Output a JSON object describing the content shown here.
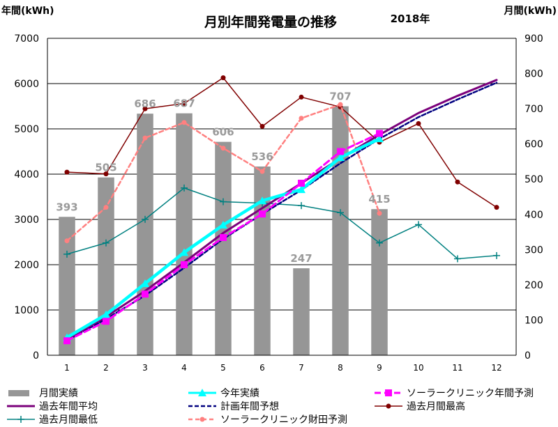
{
  "chart_data": {
    "type": "bar",
    "title": "月別年間発電量の推移",
    "subtitle": "2018年",
    "left_axis_label": "年間(kWh)",
    "right_axis_label": "月間(kWh)",
    "categories": [
      "1",
      "2",
      "3",
      "4",
      "5",
      "6",
      "7",
      "8",
      "9",
      "10",
      "11",
      "12"
    ],
    "ylim_left": [
      0,
      7000
    ],
    "yticks_left": [
      0,
      1000,
      2000,
      3000,
      4000,
      5000,
      6000,
      7000
    ],
    "ylim_right": [
      0,
      900
    ],
    "yticks_right": [
      0,
      100,
      200,
      300,
      400,
      500,
      600,
      700,
      800,
      900
    ],
    "grid": true,
    "legend_position": "bottom",
    "series": [
      {
        "name": "月間実績",
        "kind": "bar",
        "axis": "right",
        "color": "#969696",
        "values": [
          393,
          505,
          686,
          687,
          606,
          536,
          247,
          707,
          415,
          null,
          null,
          null
        ]
      },
      {
        "name": "今年実績",
        "kind": "line",
        "axis": "left",
        "color": "#00ffff",
        "marker": "triangle",
        "values": [
          393,
          898,
          1584,
          2271,
          2877,
          3413,
          3660,
          4367,
          4782,
          null,
          null,
          null
        ]
      },
      {
        "name": "ソーラークリニック年間予測",
        "kind": "line",
        "axis": "left",
        "color": "#ff00ff",
        "dash": "dash",
        "marker": "square",
        "values": [
          320,
          750,
          1350,
          2000,
          2600,
          3120,
          3800,
          4500,
          4900,
          null,
          null,
          null
        ]
      },
      {
        "name": "過去年間平均",
        "kind": "line",
        "axis": "left",
        "color": "#7b007b",
        "values": [
          350,
          850,
          1420,
          2050,
          2700,
          3250,
          3800,
          4350,
          4870,
          5350,
          5730,
          6080
        ]
      },
      {
        "name": "計画年間予想",
        "kind": "line",
        "axis": "left",
        "color": "#000080",
        "dash": "dash",
        "values": [
          330,
          800,
          1320,
          1930,
          2570,
          3120,
          3650,
          4240,
          4780,
          5260,
          5650,
          6020
        ]
      },
      {
        "name": "過去月間最高",
        "kind": "line",
        "axis": "right",
        "color": "#800000",
        "marker": "circle",
        "values": [
          520,
          515,
          700,
          715,
          788,
          650,
          733,
          705,
          605,
          658,
          492,
          420
        ]
      },
      {
        "name": "過去月間最低",
        "kind": "line",
        "axis": "right",
        "color": "#008080",
        "marker": "plus",
        "values": [
          287,
          319,
          386,
          475,
          436,
          432,
          425,
          405,
          319,
          371,
          274,
          283
        ]
      },
      {
        "name": "ソーラークリニック財田予測",
        "kind": "line",
        "axis": "right",
        "color": "#ff8080",
        "dash": "dash",
        "marker": "circle",
        "values": [
          325,
          420,
          617,
          661,
          588,
          522,
          673,
          712,
          403,
          null,
          null,
          null
        ]
      }
    ],
    "data_labels": {
      "series": "月間実績",
      "values": [
        "393",
        "505",
        "686",
        "687",
        "606",
        "536",
        "247",
        "707",
        "415"
      ]
    }
  }
}
